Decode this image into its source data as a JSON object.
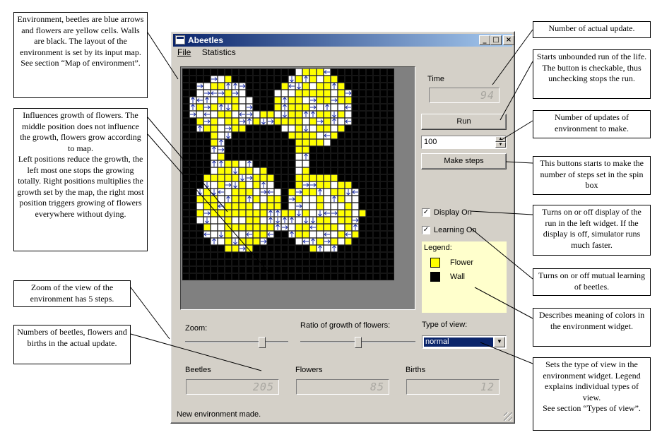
{
  "window": {
    "title": "Abeetles",
    "menu": [
      "File",
      "Statistics"
    ],
    "status": "New environment made."
  },
  "environment": {
    "colors": {
      "flower": "#ffff00",
      "wall": "#000000",
      "empty": "#ffffff",
      "beetle": "#1c2fa8",
      "background": "#808080"
    }
  },
  "controls": {
    "time_label": "Time",
    "time_value": "94",
    "run_label": "Run",
    "steps_value": "100",
    "make_steps_label": "Make steps",
    "display_label": "Display On",
    "display_checked": true,
    "learning_label": "Learning On",
    "learning_checked": true,
    "legend_title": "Legend:",
    "legend": [
      {
        "label": "Flower",
        "color": "#ffff00"
      },
      {
        "label": "Wall",
        "color": "#000000"
      }
    ],
    "zoom_label": "Zoom:",
    "zoom_level": 3,
    "zoom_steps": 5,
    "ratio_label": "Ratio of growth of flowers:",
    "ratio_fraction": 0.5,
    "view_label": "Type of view:",
    "view_value": "normal",
    "beetles_label": "Beetles",
    "beetles_value": "205",
    "flowers_label": "Flowers",
    "flowers_value": "85",
    "births_label": "Births",
    "births_value": "12"
  },
  "callouts": {
    "env": "Environment, beetles are blue arrows and flowers are yellow cells. Walls are black. The layout of the environment is set by its input map.\nSee section “Map of environment”.",
    "growth": "Influences growth of flowers. The middle position does not influence the growth, flowers grow according to map.\nLeft positions reduce the growth, the left most one stops the growing totally. Right positions multiplies the growth set by the map, the right most position triggers growing of flowers everywhere without dying.",
    "zoom": "Zoom of the view of the environment has 5 steps.",
    "numbers": "Numbers of beetles, flowers and births in the actual update.",
    "update": "Number of actual update.",
    "run": "Starts unbounded run of the life. The button is checkable, thus unchecking stops the run.",
    "updates": "Number of updates of environment to make.",
    "makesteps": "This buttons starts to make the number of steps set in the spin box",
    "display": "Turns on or off display of the run in the left widget. If the display is off, simulator runs much faster.",
    "learning": "Turns on or off mutual learning of beetles.",
    "legend": "Describes meaning of colors in the environment widget.",
    "view": "Sets the type of view in the environment widget. Legend explains individual types of view.\nSee section “Types of view”."
  }
}
